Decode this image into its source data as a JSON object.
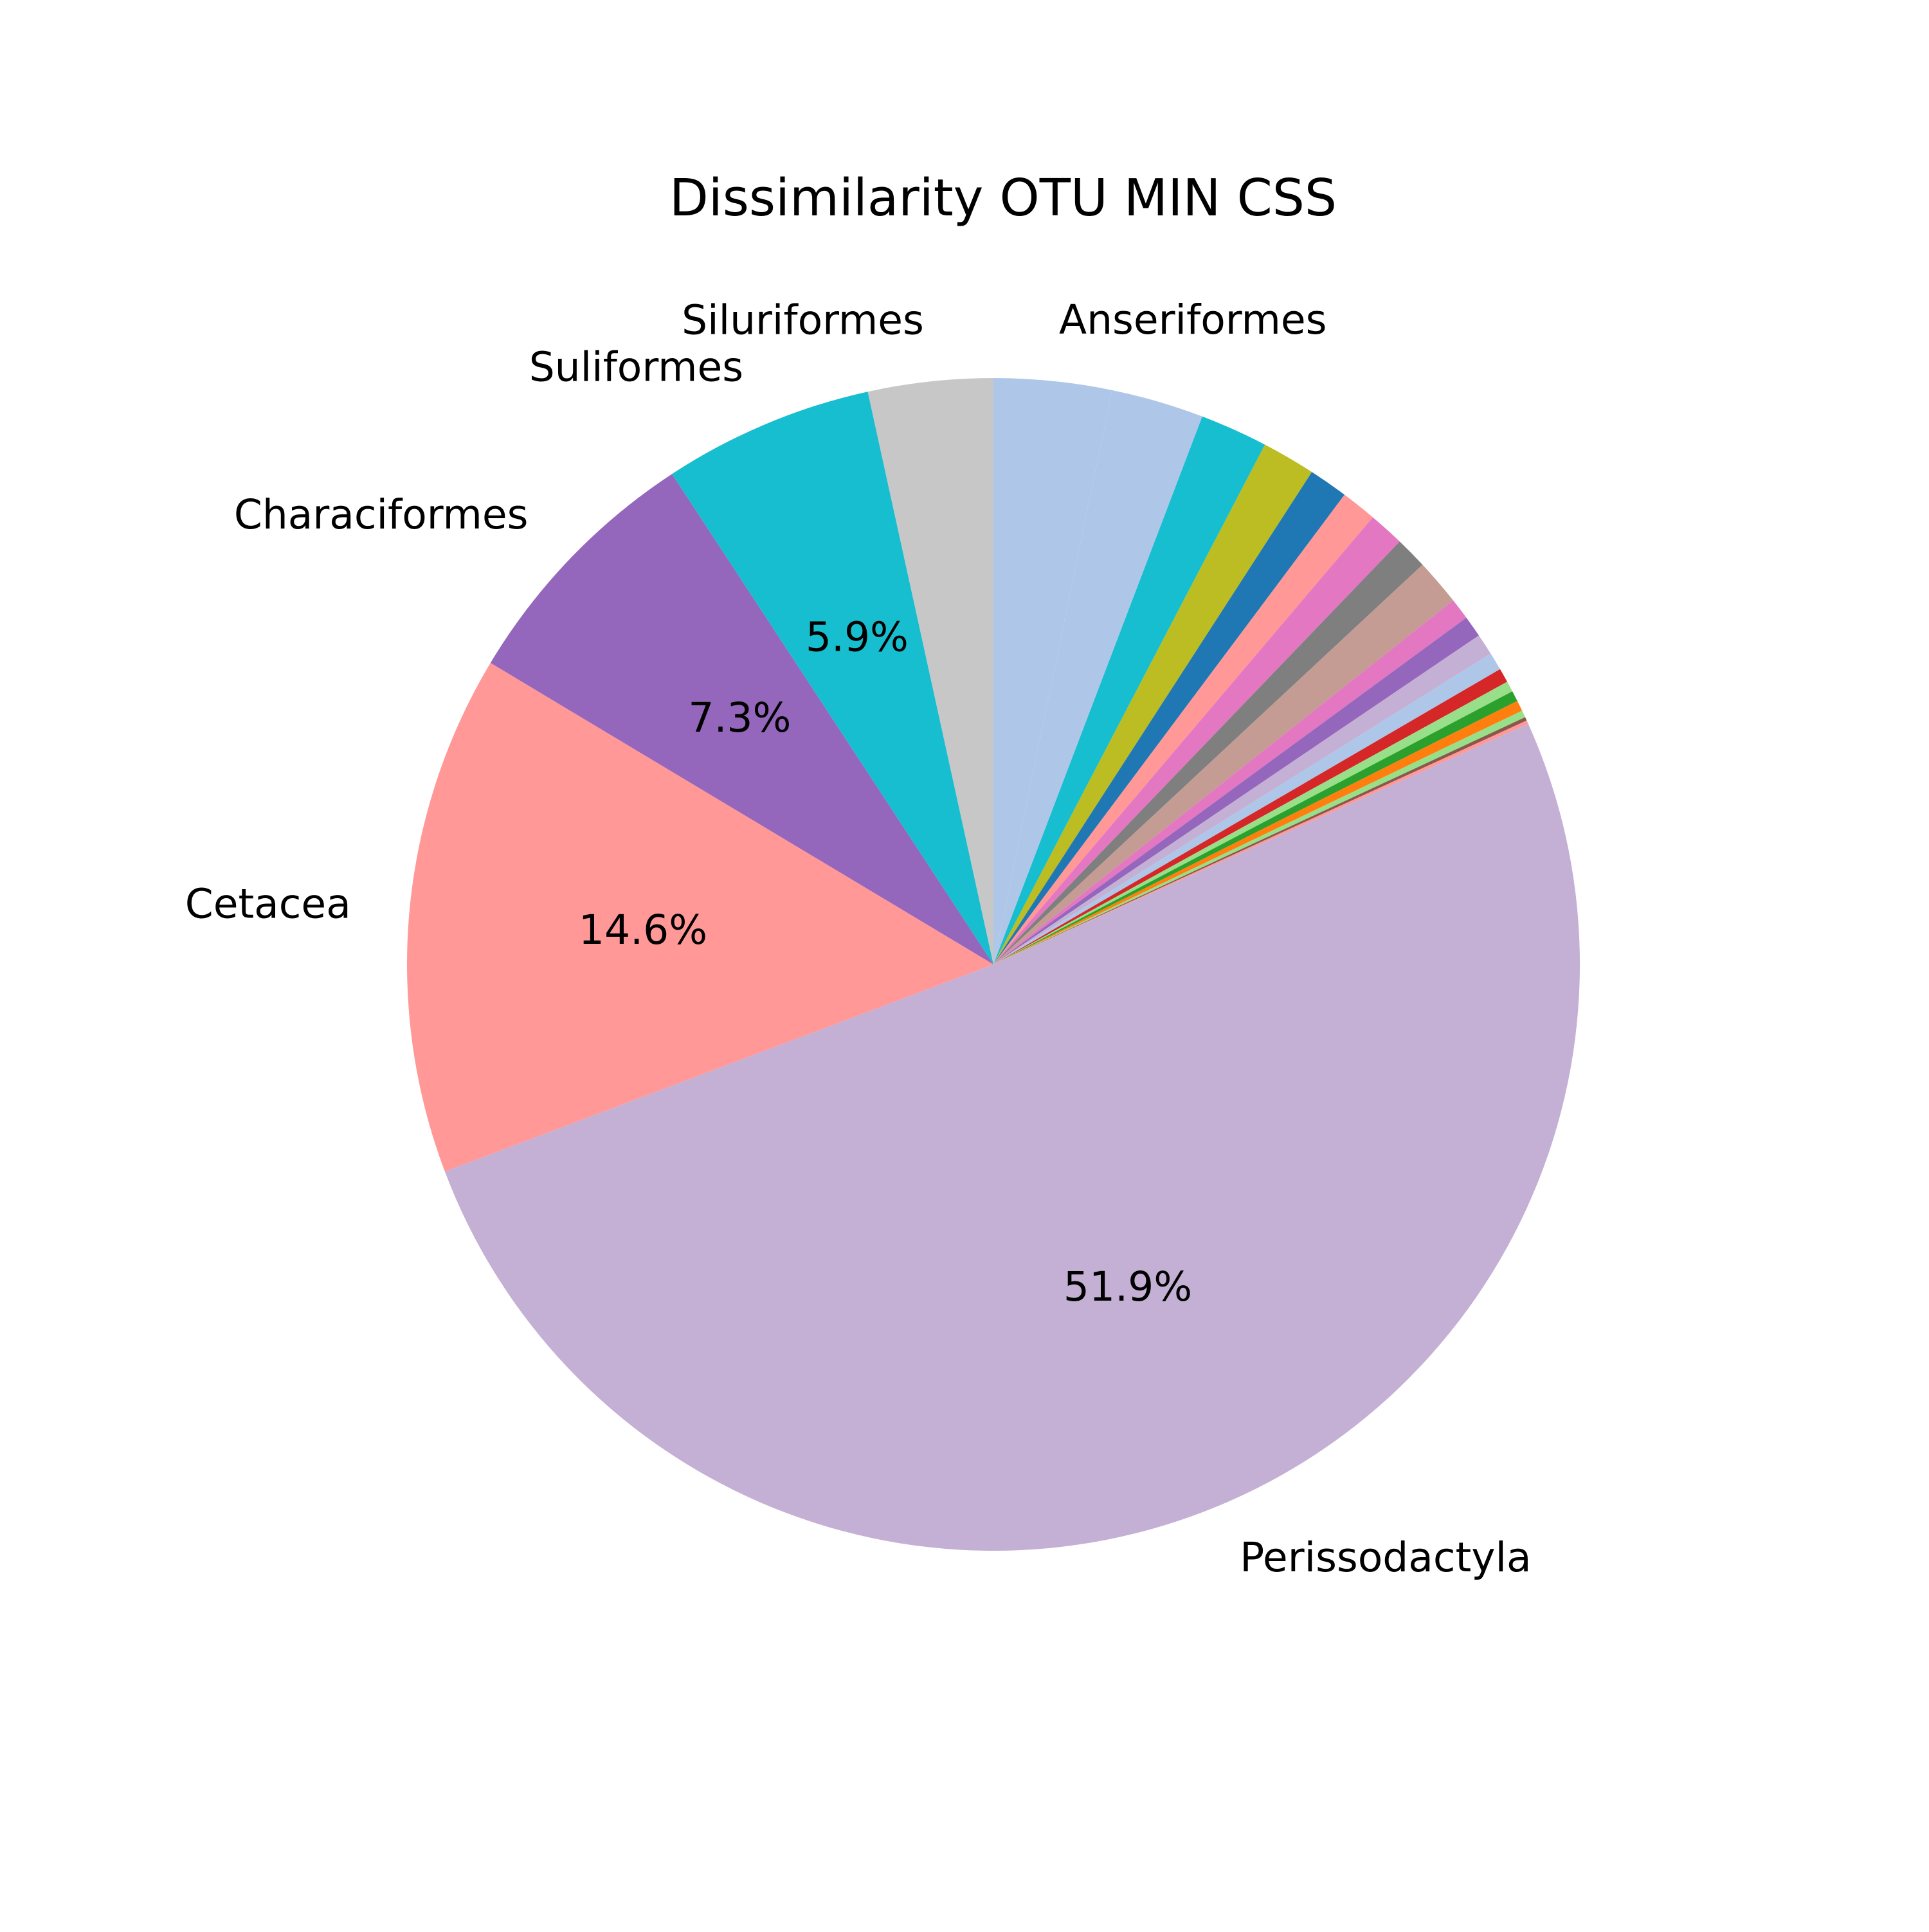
{
  "chart_data": {
    "type": "pie",
    "title": "Dissimilarity OTU MIN CSS",
    "start_angle_deg": 90,
    "direction": "clockwise",
    "slices": [
      {
        "label": "Anseriformes",
        "value": 3.3,
        "color": "#aec7e8",
        "pct_label": ""
      },
      {
        "label": "",
        "value": 2.6,
        "color": "#aec7e8",
        "pct_label": ""
      },
      {
        "label": "",
        "value": 1.9,
        "color": "#17becf",
        "pct_label": ""
      },
      {
        "label": "",
        "value": 1.5,
        "color": "#bcbd22",
        "pct_label": ""
      },
      {
        "label": "",
        "value": 1.1,
        "color": "#1f77b4",
        "pct_label": ""
      },
      {
        "label": "",
        "value": 1.0,
        "color": "#ff9896",
        "pct_label": ""
      },
      {
        "label": "",
        "value": 1.0,
        "color": "#e377c2",
        "pct_label": ""
      },
      {
        "label": "",
        "value": 0.9,
        "color": "#7f7f7f",
        "pct_label": ""
      },
      {
        "label": "",
        "value": 1.3,
        "color": "#c49c94",
        "pct_label": ""
      },
      {
        "label": "",
        "value": 0.6,
        "color": "#e377c2",
        "pct_label": ""
      },
      {
        "label": "",
        "value": 0.6,
        "color": "#9467bd",
        "pct_label": ""
      },
      {
        "label": "",
        "value": 0.6,
        "color": "#c5b0d5",
        "pct_label": ""
      },
      {
        "label": "",
        "value": 0.5,
        "color": "#aec7e8",
        "pct_label": ""
      },
      {
        "label": "",
        "value": 0.4,
        "color": "#d62728",
        "pct_label": ""
      },
      {
        "label": "",
        "value": 0.3,
        "color": "#98df8a",
        "pct_label": ""
      },
      {
        "label": "",
        "value": 0.3,
        "color": "#2ca02c",
        "pct_label": ""
      },
      {
        "label": "",
        "value": 0.3,
        "color": "#ff7f0e",
        "pct_label": ""
      },
      {
        "label": "",
        "value": 0.2,
        "color": "#98df8a",
        "pct_label": ""
      },
      {
        "label": "",
        "value": 0.1,
        "color": "#8c564b",
        "pct_label": ""
      },
      {
        "label": "",
        "value": 0.1,
        "color": "#ff9896",
        "pct_label": ""
      },
      {
        "label": "Perissodactyla",
        "value": 51.9,
        "color": "#c5b0d5",
        "pct_label": "51.9%"
      },
      {
        "label": "Cetacea",
        "value": 14.6,
        "color": "#ff9896",
        "pct_label": "14.6%"
      },
      {
        "label": "Characiformes",
        "value": 7.3,
        "color": "#9467bd",
        "pct_label": "7.3%"
      },
      {
        "label": "Suliformes",
        "value": 5.9,
        "color": "#17becf",
        "pct_label": "5.9%"
      },
      {
        "label": "Siluriformes",
        "value": 3.5,
        "color": "#c7c7c7",
        "pct_label": ""
      }
    ]
  }
}
